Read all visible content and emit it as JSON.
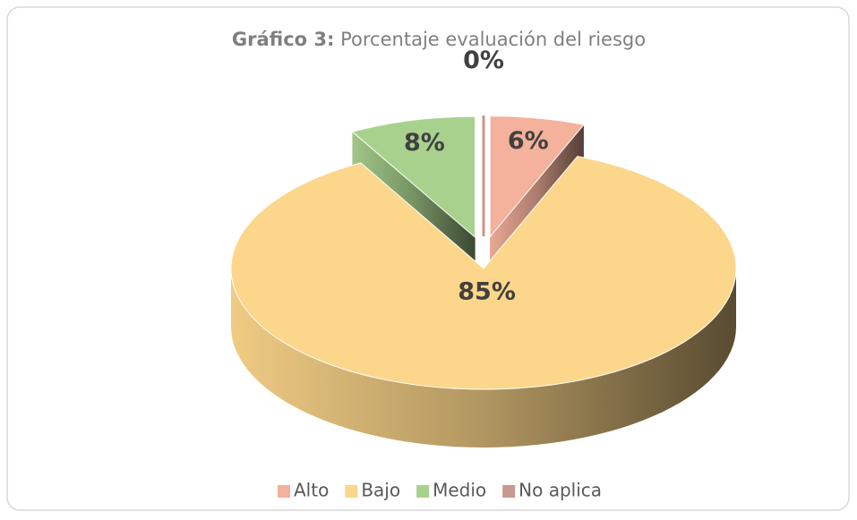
{
  "chart_data": {
    "type": "pie3d",
    "title_label": "Gráfico 3:",
    "title": "Porcentaje evaluación del riesgo",
    "categories": [
      "Alto",
      "Bajo",
      "Medio",
      "No aplica"
    ],
    "values": [
      6,
      85,
      8,
      0
    ],
    "value_labels": [
      "6%",
      "85%",
      "8%",
      "0%"
    ],
    "colors": [
      "#f4b19b",
      "#fcd68a",
      "#a9d18e",
      "#c9978d"
    ],
    "exploded": [
      true,
      false,
      true,
      true
    ],
    "legend": "bottom"
  }
}
